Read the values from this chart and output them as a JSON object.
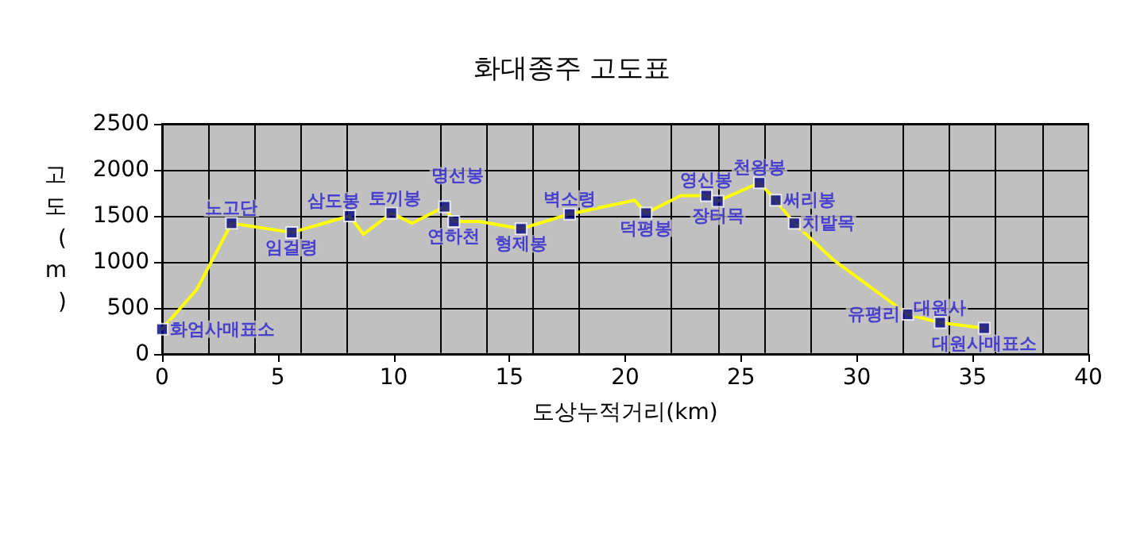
{
  "chart_data": {
    "type": "line",
    "title": "화대종주 고도표",
    "xlabel": "도상누적거리(km)",
    "ylabel": "고도(m)",
    "xlim": [
      0,
      40
    ],
    "xticks": [
      0,
      5,
      10,
      15,
      20,
      25,
      30,
      35,
      40
    ],
    "ylim": [
      0,
      2500
    ],
    "yticks": [
      0,
      500,
      1000,
      1500,
      2000,
      2500
    ],
    "grid": true,
    "series": [
      {
        "type": "line",
        "color": "#ffff00",
        "marker": "none",
        "x": [
          0,
          1.5,
          3.0,
          5.6,
          8.1,
          8.7,
          9.9,
          10.8,
          12.2,
          12.6,
          13.7,
          15.5,
          17.6,
          20.4,
          20.9,
          22.4,
          23.5,
          24.0,
          25.8,
          26.5,
          27.3,
          29.0,
          32.2,
          33.6,
          35.5
        ],
        "values": [
          270,
          700,
          1420,
          1320,
          1500,
          1300,
          1530,
          1420,
          1600,
          1440,
          1440,
          1360,
          1520,
          1670,
          1530,
          1720,
          1720,
          1660,
          1860,
          1670,
          1420,
          1020,
          430,
          340,
          280
        ]
      },
      {
        "type": "scatter",
        "color": "#000080",
        "marker": "square",
        "x": [
          0,
          3.0,
          5.6,
          8.1,
          9.9,
          12.2,
          12.6,
          15.5,
          17.6,
          20.9,
          23.5,
          24.0,
          25.8,
          26.5,
          27.3,
          32.2,
          33.6,
          35.5
        ],
        "values": [
          270,
          1420,
          1320,
          1500,
          1530,
          1600,
          1440,
          1360,
          1520,
          1530,
          1720,
          1660,
          1860,
          1670,
          1420,
          430,
          340,
          280
        ]
      }
    ],
    "annotations": [
      {
        "text": "화엄사매표소",
        "x": 0,
        "y": 270
      },
      {
        "text": "노고단",
        "x": 3.0,
        "y": 1420
      },
      {
        "text": "임걸령",
        "x": 5.6,
        "y": 1320
      },
      {
        "text": "삼도봉",
        "x": 8.1,
        "y": 1500
      },
      {
        "text": "토끼봉",
        "x": 9.9,
        "y": 1530
      },
      {
        "text": "명선봉",
        "x": 12.2,
        "y": 1600
      },
      {
        "text": "연하천",
        "x": 12.6,
        "y": 1440
      },
      {
        "text": "형제봉",
        "x": 15.5,
        "y": 1360
      },
      {
        "text": "벽소령",
        "x": 17.6,
        "y": 1520
      },
      {
        "text": "덕평봉",
        "x": 20.9,
        "y": 1530
      },
      {
        "text": "영신봉",
        "x": 23.5,
        "y": 1720
      },
      {
        "text": "장터목",
        "x": 24.0,
        "y": 1660
      },
      {
        "text": "천왕봉",
        "x": 25.8,
        "y": 1860
      },
      {
        "text": "써리봉",
        "x": 26.5,
        "y": 1670
      },
      {
        "text": "치밭목",
        "x": 27.3,
        "y": 1420
      },
      {
        "text": "유평리",
        "x": 32.2,
        "y": 430
      },
      {
        "text": "대원사",
        "x": 33.6,
        "y": 340
      },
      {
        "text": "대원사매표소",
        "x": 35.5,
        "y": 280
      }
    ]
  }
}
